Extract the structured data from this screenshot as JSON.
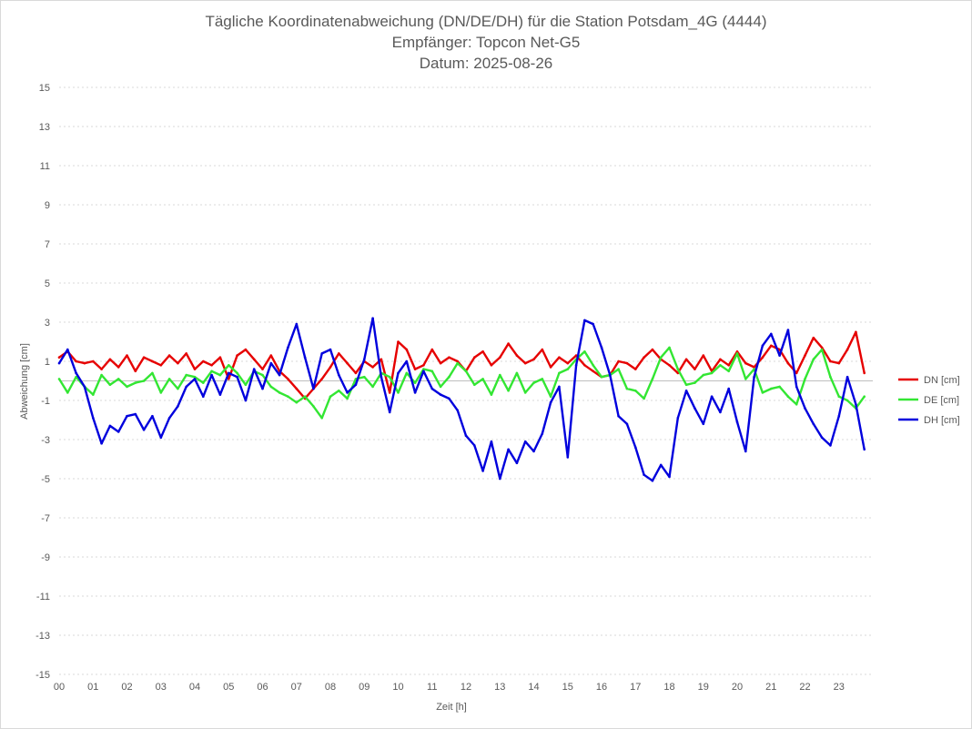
{
  "chart_data": {
    "type": "line",
    "title": [
      "Tägliche Koordinatenabweichung (DN/DE/DH) für die Station Potsdam_4G (4444)",
      "Empfänger: Topcon Net-G5",
      "Datum: 2025-08-26"
    ],
    "xlabel": "Zeit [h]",
    "ylabel": "Abweichung [cm]",
    "xlim": [
      0,
      24
    ],
    "ylim": [
      -15,
      15
    ],
    "x_ticks": [
      "00",
      "01",
      "02",
      "03",
      "04",
      "05",
      "06",
      "07",
      "08",
      "09",
      "10",
      "11",
      "12",
      "13",
      "14",
      "15",
      "16",
      "17",
      "18",
      "19",
      "20",
      "21",
      "22",
      "23"
    ],
    "y_ticks": [
      "15",
      "13",
      "11",
      "9",
      "7",
      "5",
      "3",
      "1",
      "-1",
      "-3",
      "-5",
      "-7",
      "-9",
      "-11",
      "-13",
      "-15"
    ],
    "grid": true,
    "legend_position": "right",
    "x": [
      0,
      0.25,
      0.5,
      0.75,
      1,
      1.25,
      1.5,
      1.75,
      2,
      2.25,
      2.5,
      2.75,
      3,
      3.25,
      3.5,
      3.75,
      4,
      4.25,
      4.5,
      4.75,
      5,
      5.25,
      5.5,
      5.75,
      6,
      6.25,
      6.5,
      6.75,
      7,
      7.25,
      7.5,
      7.75,
      8,
      8.25,
      8.5,
      8.75,
      9,
      9.25,
      9.5,
      9.75,
      10,
      10.25,
      10.5,
      10.75,
      11,
      11.25,
      11.5,
      11.75,
      12,
      12.25,
      12.5,
      12.75,
      13,
      13.25,
      13.5,
      13.75,
      14,
      14.25,
      14.5,
      14.75,
      15,
      15.25,
      15.5,
      15.75,
      16,
      16.25,
      16.5,
      16.75,
      17,
      17.25,
      17.5,
      17.75,
      18,
      18.25,
      18.5,
      18.75,
      19,
      19.25,
      19.5,
      19.75,
      20,
      20.25,
      20.5,
      20.75,
      21,
      21.25,
      21.5,
      21.75,
      22,
      22.25,
      22.5,
      22.75,
      23,
      23.25,
      23.5,
      23.75
    ],
    "series": [
      {
        "name": "DN [cm]",
        "color": "#e60000",
        "values": [
          1.2,
          1.5,
          1.0,
          0.9,
          1.0,
          0.6,
          1.1,
          0.7,
          1.3,
          0.5,
          1.2,
          1.0,
          0.8,
          1.3,
          0.9,
          1.4,
          0.6,
          1.0,
          0.8,
          1.2,
          0.1,
          1.3,
          1.6,
          1.1,
          0.6,
          1.3,
          0.5,
          0.1,
          -0.4,
          -0.9,
          -0.4,
          0.1,
          0.7,
          1.4,
          0.9,
          0.4,
          1.0,
          0.7,
          1.1,
          -0.6,
          2.0,
          1.6,
          0.6,
          0.8,
          1.6,
          0.9,
          1.2,
          1.0,
          0.5,
          1.2,
          1.5,
          0.8,
          1.2,
          1.9,
          1.3,
          0.9,
          1.1,
          1.6,
          0.7,
          1.2,
          0.9,
          1.3,
          0.8,
          0.5,
          0.2,
          0.3,
          1.0,
          0.9,
          0.6,
          1.2,
          1.6,
          1.1,
          0.8,
          0.4,
          1.1,
          0.6,
          1.3,
          0.5,
          1.1,
          0.8,
          1.5,
          0.9,
          0.7,
          1.2,
          1.8,
          1.6,
          0.9,
          0.4,
          1.3,
          2.2,
          1.7,
          1.0,
          0.9,
          1.6,
          2.5,
          0.4
        ]
      },
      {
        "name": "DE [cm]",
        "color": "#33e633",
        "values": [
          0.1,
          -0.6,
          0.2,
          -0.3,
          -0.7,
          0.3,
          -0.2,
          0.1,
          -0.3,
          -0.1,
          0.0,
          0.4,
          -0.6,
          0.1,
          -0.4,
          0.3,
          0.2,
          -0.1,
          0.5,
          0.3,
          0.8,
          0.4,
          -0.2,
          0.5,
          0.3,
          -0.3,
          -0.6,
          -0.8,
          -1.1,
          -0.8,
          -1.3,
          -1.9,
          -0.8,
          -0.5,
          -0.9,
          0.1,
          0.2,
          -0.3,
          0.4,
          0.2,
          -0.6,
          0.4,
          -0.1,
          0.6,
          0.5,
          -0.3,
          0.2,
          0.9,
          0.5,
          -0.2,
          0.1,
          -0.7,
          0.3,
          -0.5,
          0.4,
          -0.6,
          -0.1,
          0.1,
          -0.8,
          0.4,
          0.6,
          1.1,
          1.5,
          0.8,
          0.2,
          0.3,
          0.6,
          -0.4,
          -0.5,
          -0.9,
          0.1,
          1.2,
          1.7,
          0.6,
          -0.2,
          -0.1,
          0.3,
          0.4,
          0.8,
          0.5,
          1.4,
          0.1,
          0.6,
          -0.6,
          -0.4,
          -0.3,
          -0.8,
          -1.2,
          0.1,
          1.1,
          1.6,
          0.2,
          -0.8,
          -1.0,
          -1.4,
          -0.8
        ]
      },
      {
        "name": "DH [cm]",
        "color": "#0000dd",
        "values": [
          0.9,
          1.6,
          0.4,
          -0.3,
          -1.9,
          -3.2,
          -2.3,
          -2.6,
          -1.8,
          -1.7,
          -2.5,
          -1.8,
          -2.9,
          -1.9,
          -1.3,
          -0.3,
          0.1,
          -0.8,
          0.3,
          -0.7,
          0.4,
          0.2,
          -1.0,
          0.6,
          -0.4,
          0.9,
          0.3,
          1.7,
          2.9,
          1.2,
          -0.4,
          1.4,
          1.6,
          0.3,
          -0.6,
          -0.2,
          1.1,
          3.2,
          0.2,
          -1.6,
          0.4,
          1.0,
          -0.6,
          0.5,
          -0.4,
          -0.7,
          -0.9,
          -1.5,
          -2.8,
          -3.3,
          -4.6,
          -3.1,
          -5.0,
          -3.5,
          -4.2,
          -3.1,
          -3.6,
          -2.7,
          -1.1,
          -0.3,
          -3.9,
          0.8,
          3.1,
          2.9,
          1.7,
          0.3,
          -1.8,
          -2.2,
          -3.4,
          -4.8,
          -5.1,
          -4.3,
          -4.9,
          -1.9,
          -0.5,
          -1.4,
          -2.2,
          -0.8,
          -1.6,
          -0.4,
          -2.1,
          -3.6,
          0.2,
          1.8,
          2.4,
          1.3,
          2.6,
          -0.3,
          -1.4,
          -2.2,
          -2.9,
          -3.3,
          -1.8,
          0.2,
          -1.2,
          -3.5
        ]
      }
    ]
  }
}
